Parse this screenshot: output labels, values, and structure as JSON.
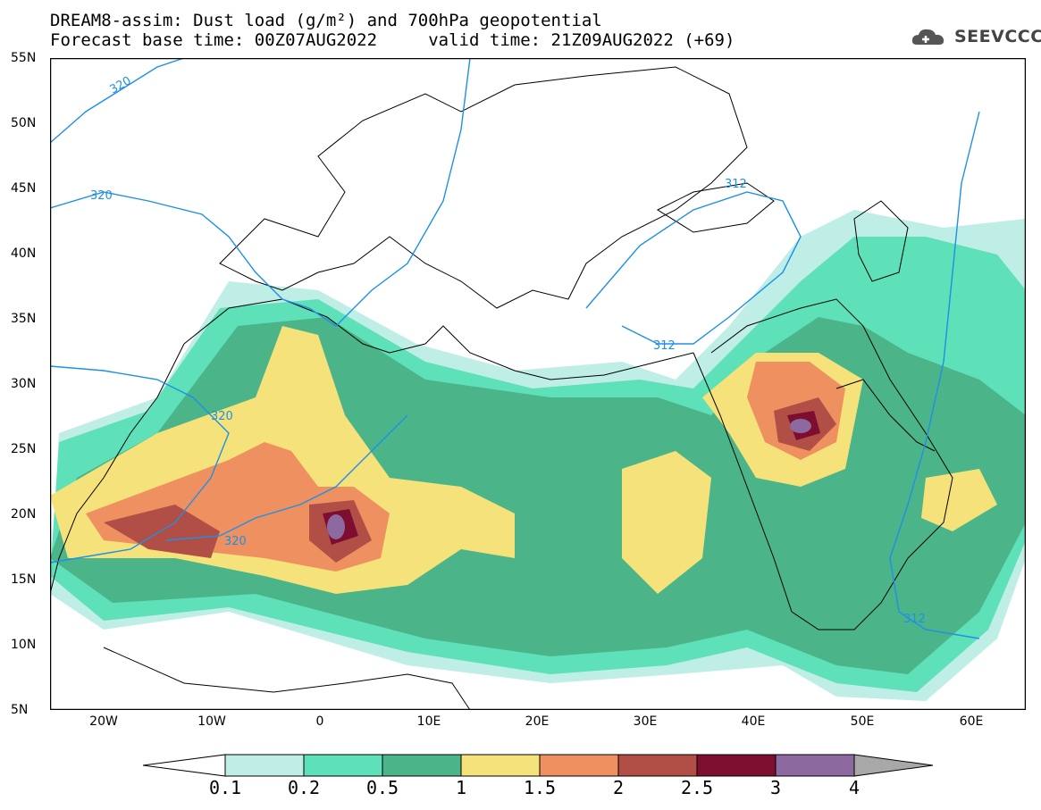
{
  "title": {
    "line1": "DREAM8-assim: Dust load (g/m²) and 700hPa geopotential",
    "line2": "Forecast base time: 00Z07AUG2022     valid time: 21Z09AUG2022 (+69)"
  },
  "logo": {
    "text": "SEEVCCC",
    "icon": "cloud-icon"
  },
  "map": {
    "lat_labels": [
      "55N",
      "50N",
      "45N",
      "40N",
      "35N",
      "30N",
      "25N",
      "20N",
      "15N",
      "10N",
      "5N"
    ],
    "lon_labels": [
      "20W",
      "10W",
      "0",
      "10E",
      "20E",
      "30E",
      "40E",
      "50E",
      "60E"
    ],
    "contour_labels": [
      "320",
      "320",
      "320",
      "320",
      "312",
      "312",
      "312"
    ],
    "colors": {
      "land_line": "#000000",
      "contour": "#1e90e6",
      "bg": "#ffffff"
    }
  },
  "colorbar": {
    "labels": [
      "0.1",
      "0.2",
      "0.5",
      "1",
      "1.5",
      "2",
      "2.5",
      "3",
      "4"
    ],
    "colors": [
      "#ffffff",
      "#bfeee6",
      "#5ee0b8",
      "#4cb489",
      "#f6e27a",
      "#ee9060",
      "#b14e45",
      "#7d0e2f",
      "#8c6aa0",
      "#a8a8a8"
    ]
  }
}
